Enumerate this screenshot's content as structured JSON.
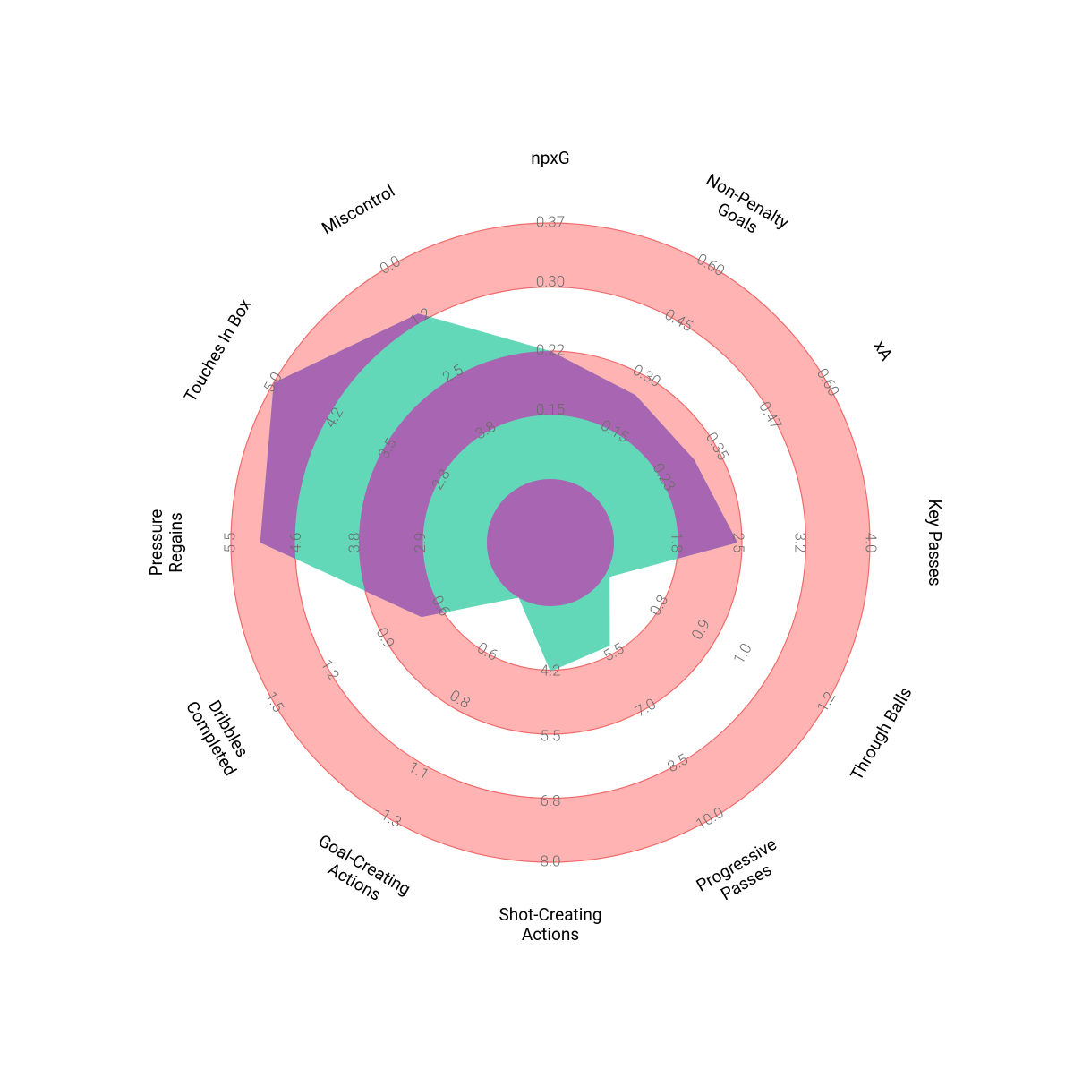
{
  "chart_data": {
    "type": "radar",
    "params": [
      [
        "npxG"
      ],
      [
        "Non-Penalty",
        "Goals"
      ],
      [
        "xA"
      ],
      [
        "Key Passes"
      ],
      [
        "Through Balls"
      ],
      [
        "Progressive",
        "Passes"
      ],
      [
        "Shot-Creating",
        "Actions"
      ],
      [
        "Goal-Creating",
        "Actions"
      ],
      [
        "Dribbles",
        "Completed"
      ],
      [
        "Pressure",
        "Regains"
      ],
      [
        "Touches In Box"
      ],
      [
        "Miscontrol"
      ]
    ],
    "lims": [
      [
        0.07,
        0.37
      ],
      [
        0,
        0.6
      ],
      [
        0.1,
        0.6
      ],
      [
        1.1,
        4
      ],
      [
        0.67,
        1.2
      ],
      [
        4,
        10
      ],
      [
        2.9,
        8
      ],
      [
        0.37,
        1.3
      ],
      [
        0.3,
        1.5
      ],
      [
        2,
        5.5
      ],
      [
        2.1,
        5
      ],
      [
        5.1,
        0
      ]
    ],
    "ticks": [
      [
        0.15,
        0.22,
        {
          "value": 0.3,
          "label": "0.30"
        },
        0.37
      ],
      [
        0.15,
        {
          "value": 0.3,
          "label": "0.30"
        },
        0.45,
        {
          "value": 0.6,
          "label": "0.60"
        }
      ],
      [
        0.23,
        0.35,
        0.47,
        {
          "value": 0.6,
          "label": "0.60"
        }
      ],
      [
        1.8,
        2.5,
        3.2,
        {
          "value": 4,
          "label": "4.0"
        }
      ],
      [
        0.8,
        0.9,
        {
          "value": 1,
          "label": "1.0"
        },
        1.2
      ],
      [
        5.5,
        {
          "value": 7,
          "label": "7.0"
        },
        8.5,
        {
          "value": 10,
          "label": "10.0"
        }
      ],
      [
        4.2,
        5.5,
        6.8,
        {
          "value": 8,
          "label": "8.0"
        }
      ],
      [
        0.6,
        0.8,
        1.1,
        1.3
      ],
      [
        0.6,
        0.9,
        1.2,
        1.5
      ],
      [
        2.9,
        3.8,
        4.6,
        5.5
      ],
      [
        2.8,
        3.5,
        4.2,
        {
          "value": 5,
          "label": "5.0"
        }
      ],
      [
        3.8,
        2.5,
        1.2,
        {
          "value": 0,
          "label": "0.0"
        }
      ]
    ],
    "values": [
      0.22,
      0.25,
      0.3,
      2.5,
      0.68,
      5.3,
      4.2,
      0.37,
      0.7,
      5.1,
      5.0,
      1.1
    ],
    "colors": [
      "#62d8b9",
      "#a866b2"
    ],
    "ring_color": "#ffb3b3",
    "ring_edge_color": "#f06a6a"
  }
}
